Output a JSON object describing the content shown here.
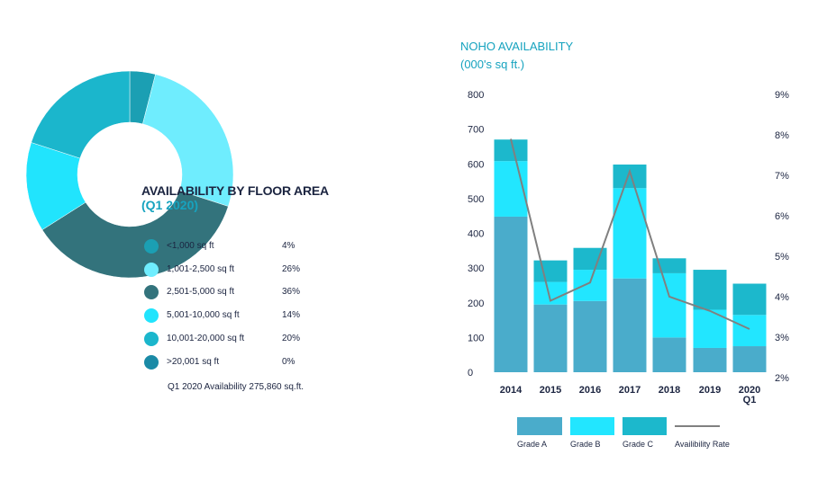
{
  "colors": {
    "grade_a": "#4aaccb",
    "grade_b": "#22e6ff",
    "grade_c": "#1cb8cc",
    "rate_line": "#808080",
    "title_accent": "#16a3bf"
  },
  "donut": {
    "title": "AVAILABILITY BY FLOOR AREA",
    "subtitle": "(Q1 2020)",
    "total_note": "Q1 2020 Availability 275,860 sq.ft.",
    "legend": [
      {
        "label": "<1,000 sq ft",
        "pct": "4%",
        "color": "#1b9fb3"
      },
      {
        "label": "1,001-2,500 sq ft",
        "pct": "26%",
        "color": "#6fedfe"
      },
      {
        "label": "2,501-5,000 sq ft",
        "pct": "36%",
        "color": "#33737c"
      },
      {
        "label": "5,001-10,000 sq ft",
        "pct": "14%",
        "color": "#21e4fd"
      },
      {
        "label": "10,001-20,000 sq ft",
        "pct": "20%",
        "color": "#1bb6cc"
      },
      {
        "label": ">20,001 sq ft",
        "pct": "0%",
        "color": "#1a8aa6"
      }
    ]
  },
  "chart_data": [
    {
      "type": "pie",
      "title": "AVAILABILITY BY FLOOR AREA",
      "subtitle": "(Q1 2020)",
      "categories": [
        "<1,000 sq ft",
        "1,001-2,500 sq ft",
        "2,501-5,000 sq ft",
        "5,001-10,000 sq ft",
        "10,001-20,000 sq ft",
        ">20,001 sq ft"
      ],
      "values": [
        4,
        26,
        36,
        14,
        20,
        0
      ]
    },
    {
      "type": "bar",
      "stacked": true,
      "title": "NOHO AVAILABILITY",
      "subtitle": "(000's sq ft.)",
      "categories": [
        "2014",
        "2015",
        "2016",
        "2017",
        "2018",
        "2019",
        "2020 Q1"
      ],
      "category_lines": [
        [
          "2014"
        ],
        [
          "2015"
        ],
        [
          "2016"
        ],
        [
          "2017"
        ],
        [
          "2018"
        ],
        [
          "2019"
        ],
        [
          "2020",
          "Q1"
        ]
      ],
      "series": [
        {
          "name": "Grade A",
          "values": [
            448,
            195,
            205,
            270,
            100,
            70,
            75
          ]
        },
        {
          "name": "Grade B",
          "values": [
            160,
            65,
            90,
            260,
            185,
            110,
            90
          ]
        },
        {
          "name": "Grade C",
          "values": [
            62,
            62,
            63,
            68,
            43,
            115,
            90
          ]
        }
      ],
      "line_series": {
        "name": "Availibility Rate",
        "axis": "right",
        "values": [
          7.9,
          3.9,
          4.35,
          7.1,
          4.0,
          3.65,
          3.2
        ]
      },
      "ylim": [
        0,
        800
      ],
      "yticks": [
        "0",
        "100",
        "200",
        "300",
        "400",
        "500",
        "600",
        "700",
        "800"
      ],
      "y2lim": [
        2,
        9
      ],
      "y2ticks": [
        "2%",
        "3%",
        "4%",
        "5%",
        "6%",
        "7%",
        "8%",
        "9%"
      ],
      "legend": [
        "Grade A",
        "Grade B",
        "Grade C",
        "Availibility Rate"
      ]
    }
  ]
}
